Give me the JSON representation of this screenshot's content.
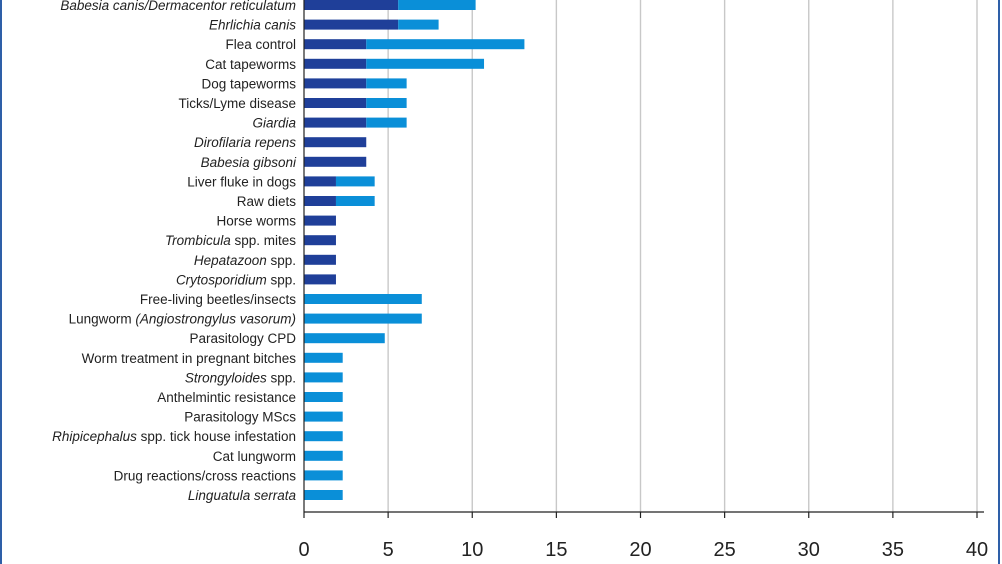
{
  "chart_data": {
    "type": "bar",
    "orientation": "horizontal",
    "stacked": true,
    "categories": [
      {
        "parts": [
          {
            "text": "Babesia canis/Dermacentor reticulatum",
            "italic": true
          }
        ]
      },
      {
        "parts": [
          {
            "text": "Ehrlichia canis",
            "italic": true
          }
        ]
      },
      {
        "parts": [
          {
            "text": "Flea control",
            "italic": false
          }
        ]
      },
      {
        "parts": [
          {
            "text": "Cat tapeworms",
            "italic": false
          }
        ]
      },
      {
        "parts": [
          {
            "text": "Dog tapeworms",
            "italic": false
          }
        ]
      },
      {
        "parts": [
          {
            "text": "Ticks/Lyme disease",
            "italic": false
          }
        ]
      },
      {
        "parts": [
          {
            "text": "Giardia",
            "italic": true
          }
        ]
      },
      {
        "parts": [
          {
            "text": "Dirofilaria repens",
            "italic": true
          }
        ]
      },
      {
        "parts": [
          {
            "text": "Babesia gibsoni",
            "italic": true
          }
        ]
      },
      {
        "parts": [
          {
            "text": "Liver fluke in dogs",
            "italic": false
          }
        ]
      },
      {
        "parts": [
          {
            "text": "Raw diets",
            "italic": false
          }
        ]
      },
      {
        "parts": [
          {
            "text": "Horse worms",
            "italic": false
          }
        ]
      },
      {
        "parts": [
          {
            "text": "Trombicula",
            "italic": true
          },
          {
            "text": " spp. mites",
            "italic": false
          }
        ]
      },
      {
        "parts": [
          {
            "text": "Hepatazoon",
            "italic": true
          },
          {
            "text": " spp.",
            "italic": false
          }
        ]
      },
      {
        "parts": [
          {
            "text": "Crytosporidium",
            "italic": true
          },
          {
            "text": " spp.",
            "italic": false
          }
        ]
      },
      {
        "parts": [
          {
            "text": "Free-living beetles/insects",
            "italic": false
          }
        ]
      },
      {
        "parts": [
          {
            "text": "Lungworm ",
            "italic": false
          },
          {
            "text": "(Angiostrongylus vasorum)",
            "italic": true
          }
        ]
      },
      {
        "parts": [
          {
            "text": "Parasitology CPD",
            "italic": false
          }
        ]
      },
      {
        "parts": [
          {
            "text": "Worm treatment in pregnant bitches",
            "italic": false
          }
        ]
      },
      {
        "parts": [
          {
            "text": "Strongyloides",
            "italic": true
          },
          {
            "text": " spp.",
            "italic": false
          }
        ]
      },
      {
        "parts": [
          {
            "text": "Anthelmintic resistance",
            "italic": false
          }
        ]
      },
      {
        "parts": [
          {
            "text": "Parasitology MScs",
            "italic": false
          }
        ]
      },
      {
        "parts": [
          {
            "text": "Rhipicephalus",
            "italic": true
          },
          {
            "text": " spp. tick house infestation",
            "italic": false
          }
        ]
      },
      {
        "parts": [
          {
            "text": "Cat lungworm",
            "italic": false
          }
        ]
      },
      {
        "parts": [
          {
            "text": "Drug reactions/cross reactions",
            "italic": false
          }
        ]
      },
      {
        "parts": [
          {
            "text": "Linguatula serrata",
            "italic": true
          }
        ]
      }
    ],
    "series": [
      {
        "color": "#1f3f99",
        "values": [
          5.6,
          5.6,
          3.7,
          3.7,
          3.7,
          3.7,
          3.7,
          3.7,
          3.7,
          1.9,
          1.9,
          1.9,
          1.9,
          1.9,
          1.9,
          0,
          0,
          0,
          0,
          0,
          0,
          0,
          0,
          0,
          0,
          0
        ]
      },
      {
        "color": "#0a8fd8",
        "values": [
          4.6,
          2.4,
          9.4,
          7.0,
          2.4,
          2.4,
          2.4,
          0,
          0,
          2.3,
          2.3,
          0,
          0,
          0,
          0,
          7.0,
          7.0,
          4.8,
          2.3,
          2.3,
          2.3,
          2.3,
          2.3,
          2.3,
          2.3,
          2.3
        ]
      }
    ],
    "xlim": [
      0,
      40
    ],
    "xticks": [
      "0",
      "5",
      "10",
      "15",
      "20",
      "25",
      "30",
      "35",
      "40"
    ],
    "grid": true,
    "grid_color": "#c8c8c8",
    "axis_color": "#222222"
  }
}
